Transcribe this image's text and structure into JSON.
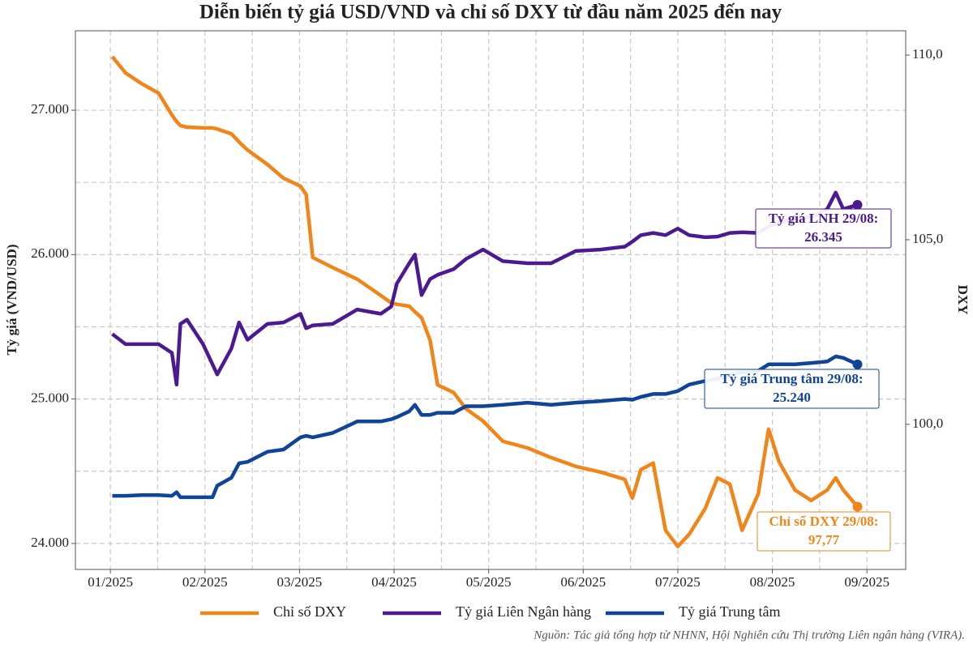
{
  "chart_data": {
    "type": "line",
    "title": "Diễn biến tỷ giá USD/VND và chỉ số DXY từ đầu năm 2025 đến nay",
    "ylabel": "Tỷ giá (VND/USD)",
    "y2label": "DXY",
    "source": "Nguồn: Tác giả tổng hợp từ NHNN, Hội Nghiên cứu Thị trường Liên ngân hàng (VIRA).",
    "grid": true,
    "legend": "bottom",
    "xlim": [
      0.63,
      9.41
    ],
    "xticks": [
      {
        "value": 1,
        "label": "01/2025"
      },
      {
        "value": 2,
        "label": "02/2025"
      },
      {
        "value": 3,
        "label": "03/2025"
      },
      {
        "value": 4,
        "label": "04/2025"
      },
      {
        "value": 5,
        "label": "05/2025"
      },
      {
        "value": 6,
        "label": "06/2025"
      },
      {
        "value": 7,
        "label": "07/2025"
      },
      {
        "value": 8,
        "label": "08/2025"
      },
      {
        "value": 9,
        "label": "09/2025"
      }
    ],
    "xminorticks": [
      1.5,
      2.5,
      3.5,
      4.5,
      5.5,
      6.5,
      7.5,
      8.5
    ],
    "ylim": [
      23820,
      27550
    ],
    "yticks": [
      {
        "value": 24000,
        "label": "24.000"
      },
      {
        "value": 25000,
        "label": "25.000"
      },
      {
        "value": 26000,
        "label": "26.000"
      },
      {
        "value": 27000,
        "label": "27.000"
      }
    ],
    "yminorticks": [
      24500,
      25500,
      26500
    ],
    "y2lim": [
      96.07,
      110.66
    ],
    "y2ticks": [
      {
        "value": 100,
        "label": "100,0"
      },
      {
        "value": 105,
        "label": "105,0"
      },
      {
        "value": 110,
        "label": "110,0"
      }
    ],
    "x": [
      1.02,
      1.16,
      1.33,
      1.51,
      1.65,
      1.7,
      1.74,
      1.81,
      1.98,
      2.08,
      2.13,
      2.28,
      2.36,
      2.45,
      2.66,
      2.83,
      3.01,
      3.07,
      3.14,
      3.35,
      3.61,
      3.86,
      3.97,
      4.03,
      4.16,
      4.22,
      4.29,
      4.38,
      4.46,
      4.63,
      4.76,
      4.94,
      5.15,
      5.41,
      5.66,
      5.92,
      6.18,
      6.44,
      6.52,
      6.61,
      6.74,
      6.87,
      7.0,
      7.12,
      7.29,
      7.42,
      7.55,
      7.68,
      7.85,
      7.96,
      8.07,
      8.24,
      8.41,
      8.58,
      8.67,
      8.75,
      8.9
    ],
    "series": [
      {
        "name": "Chỉ số DXY",
        "color": "#f0861b",
        "axis": "y2",
        "end_title": "Chỉ số DXY 29/08:",
        "end_label": "97,77",
        "values": [
          109.96,
          109.52,
          109.23,
          108.97,
          108.38,
          108.2,
          108.09,
          108.05,
          108.03,
          108.03,
          108.0,
          107.87,
          107.65,
          107.43,
          107.04,
          106.67,
          106.45,
          106.23,
          104.52,
          104.25,
          103.93,
          103.49,
          103.29,
          103.25,
          103.2,
          103.05,
          102.89,
          102.28,
          101.07,
          100.86,
          100.42,
          100.09,
          99.54,
          99.36,
          99.1,
          98.86,
          98.71,
          98.51,
          98.0,
          98.77,
          98.95,
          97.13,
          96.69,
          97.02,
          97.72,
          98.55,
          98.38,
          97.13,
          98.11,
          99.87,
          98.99,
          98.22,
          97.94,
          98.22,
          98.55,
          98.22,
          97.77
        ]
      },
      {
        "name": "Tỷ giá Liên Ngân hàng",
        "color": "#4b1a91",
        "end_title": "Tỷ giá LNH 29/08:",
        "end_label": "26.345",
        "values": [
          25450,
          25380,
          25380,
          25380,
          25320,
          25100,
          25520,
          25550,
          25380,
          25240,
          25170,
          25350,
          25530,
          25410,
          25520,
          25530,
          25590,
          25490,
          25510,
          25520,
          25620,
          25590,
          25640,
          25800,
          25940,
          26000,
          25720,
          25830,
          25860,
          25900,
          25970,
          26035,
          25955,
          25940,
          25940,
          26025,
          26035,
          26055,
          26090,
          26135,
          26150,
          26135,
          26180,
          26135,
          26120,
          26125,
          26150,
          26155,
          26150,
          26195,
          26220,
          26250,
          26260,
          26315,
          26430,
          26315,
          26345
        ]
      },
      {
        "name": "Tỷ giá Trung tâm",
        "color": "#0f4496",
        "end_title": "Tỷ giá Trung tâm 29/08:",
        "end_label": "25.240",
        "values": [
          24330,
          24330,
          24335,
          24335,
          24330,
          24355,
          24320,
          24320,
          24320,
          24320,
          24400,
          24455,
          24555,
          24565,
          24635,
          24650,
          24735,
          24745,
          24735,
          24765,
          24845,
          24845,
          24860,
          24875,
          24915,
          24960,
          24890,
          24890,
          24905,
          24905,
          24950,
          24950,
          24960,
          24975,
          24960,
          24975,
          24985,
          25000,
          24995,
          25015,
          25035,
          25035,
          25055,
          25100,
          25125,
          25140,
          25170,
          25185,
          25195,
          25240,
          25240,
          25240,
          25250,
          25260,
          25295,
          25285,
          25240
        ]
      }
    ]
  }
}
